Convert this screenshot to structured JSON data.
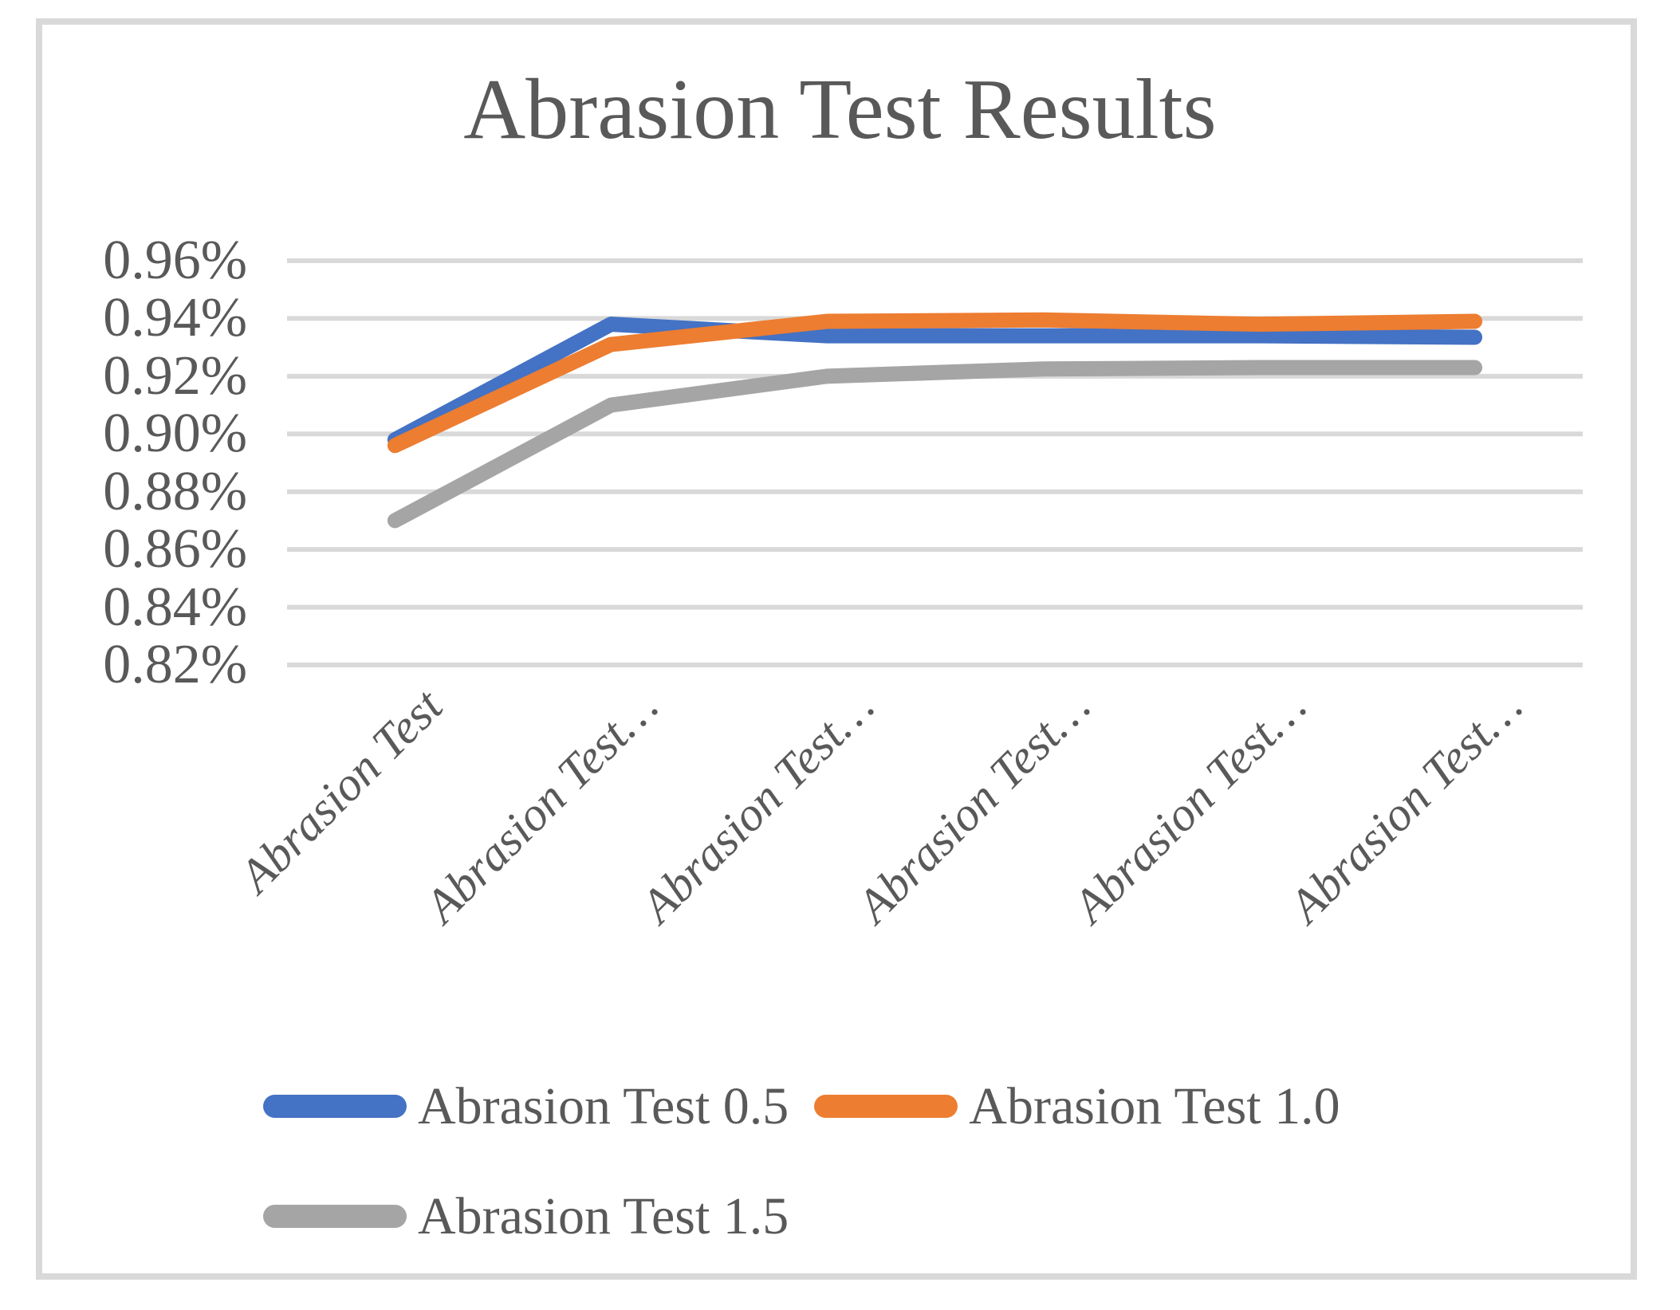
{
  "chart_data": {
    "type": "line",
    "title": "Abrasion Test Results",
    "categories": [
      "Abrasion Test",
      "Abrasion Test…",
      "Abrasion Test…",
      "Abrasion Test…",
      "Abrasion Test…",
      "Abrasion Test…"
    ],
    "series": [
      {
        "name": "Abrasion Test 0.5",
        "color": "#4472C4",
        "values": [
          0.898,
          0.938,
          0.934,
          0.934,
          0.934,
          0.9335
        ]
      },
      {
        "name": "Abrasion Test 1.0",
        "color": "#ED7D31",
        "values": [
          0.896,
          0.931,
          0.939,
          0.9395,
          0.938,
          0.939
        ]
      },
      {
        "name": "Abrasion Test 1.5",
        "color": "#A5A5A5",
        "values": [
          0.87,
          0.91,
          0.92,
          0.9225,
          0.923,
          0.923
        ]
      }
    ],
    "y_ticks": [
      {
        "label": "0.96%",
        "value": 0.96
      },
      {
        "label": "0.94%",
        "value": 0.94
      },
      {
        "label": "0.92%",
        "value": 0.92
      },
      {
        "label": "0.90%",
        "value": 0.9
      },
      {
        "label": "0.88%",
        "value": 0.88
      },
      {
        "label": "0.86%",
        "value": 0.86
      },
      {
        "label": "0.84%",
        "value": 0.84
      },
      {
        "label": "0.82%",
        "value": 0.82
      }
    ],
    "ylim": [
      0.82,
      0.96
    ],
    "y_unit": "percent",
    "grid": true,
    "x_label_rotation_deg": 45,
    "legend_position": "bottom",
    "legend_rows": [
      [
        "Abrasion Test 0.5",
        "Abrasion Test 1.0"
      ],
      [
        "Abrasion Test 1.5"
      ]
    ]
  },
  "colors": {
    "text": "#595959",
    "gridline": "#D9D9D9",
    "border": "#D9D9D9",
    "background": "#FFFFFF"
  }
}
